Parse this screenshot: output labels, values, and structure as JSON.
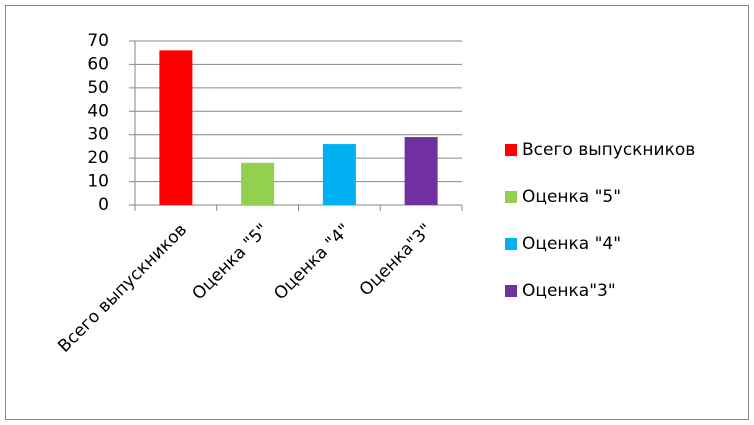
{
  "chart_data": {
    "type": "bar",
    "categories": [
      "Всего выпускников",
      "Оценка \"5\"",
      "Оценка \"4\"",
      "Оценка\"3\""
    ],
    "values": [
      66,
      18,
      26,
      29
    ],
    "colors": [
      "#ff0000",
      "#92d050",
      "#00b0f0",
      "#7030a0"
    ],
    "ylim": [
      0,
      70
    ],
    "yticks": [
      0,
      10,
      20,
      30,
      40,
      50,
      60,
      70
    ],
    "grid": true,
    "legend": "right"
  }
}
